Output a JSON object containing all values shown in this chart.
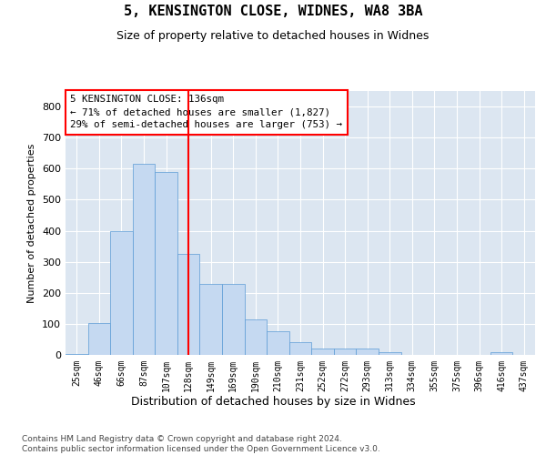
{
  "title": "5, KENSINGTON CLOSE, WIDNES, WA8 3BA",
  "subtitle": "Size of property relative to detached houses in Widnes",
  "xlabel": "Distribution of detached houses by size in Widnes",
  "ylabel": "Number of detached properties",
  "bar_color": "#c5d9f1",
  "bar_edge_color": "#5b9bd5",
  "plot_bg_color": "#dce6f1",
  "fig_bg_color": "#ffffff",
  "vline_color": "red",
  "annotation_text": "5 KENSINGTON CLOSE: 136sqm\n← 71% of detached houses are smaller (1,827)\n29% of semi-detached houses are larger (753) →",
  "annotation_box_color": "white",
  "annotation_box_edge": "red",
  "categories": [
    "25sqm",
    "46sqm",
    "66sqm",
    "87sqm",
    "107sqm",
    "128sqm",
    "149sqm",
    "169sqm",
    "190sqm",
    "210sqm",
    "231sqm",
    "252sqm",
    "272sqm",
    "293sqm",
    "313sqm",
    "334sqm",
    "355sqm",
    "375sqm",
    "396sqm",
    "416sqm",
    "437sqm"
  ],
  "values": [
    3,
    103,
    400,
    615,
    590,
    325,
    230,
    230,
    115,
    75,
    40,
    20,
    20,
    20,
    10,
    0,
    0,
    0,
    0,
    10,
    0
  ],
  "ylim": [
    0,
    850
  ],
  "yticks": [
    0,
    100,
    200,
    300,
    400,
    500,
    600,
    700,
    800
  ],
  "footer": "Contains HM Land Registry data © Crown copyright and database right 2024.\nContains public sector information licensed under the Open Government Licence v3.0.",
  "grid_color": "#ffffff",
  "vline_pos": 5.0
}
